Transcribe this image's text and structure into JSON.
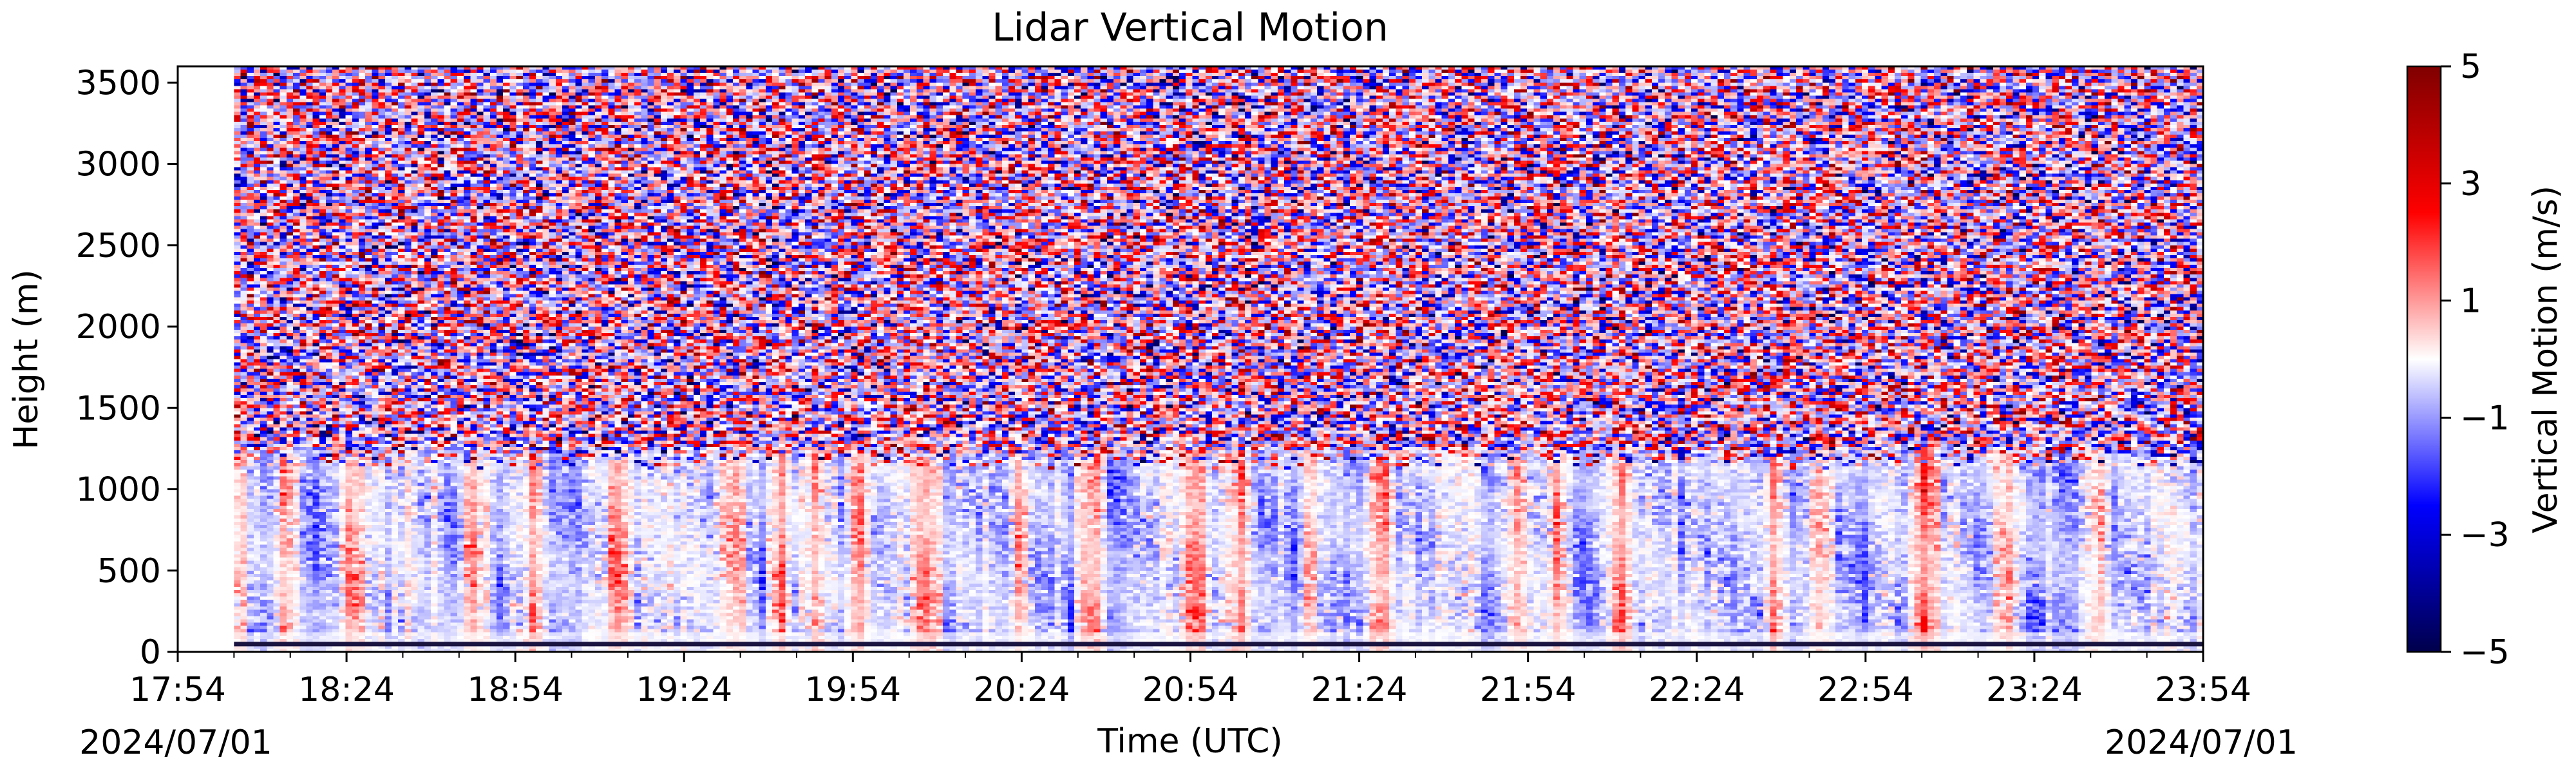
{
  "chart_data": {
    "type": "heatmap",
    "title": "Lidar Vertical Motion",
    "xlabel": "Time (UTC)",
    "ylabel": "Height (m)",
    "x_ticks": [
      "17:54",
      "18:24",
      "18:54",
      "19:24",
      "19:54",
      "20:24",
      "20:54",
      "21:24",
      "21:54",
      "22:24",
      "22:54",
      "23:24",
      "23:54"
    ],
    "x_date_left": "2024/07/01",
    "x_date_right": "2024/07/01",
    "xlim": [
      "2024-07-01 17:54",
      "2024-07-01 23:54"
    ],
    "data_start": "2024-07-01 18:04",
    "y_ticks": [
      0,
      500,
      1000,
      1500,
      2000,
      2500,
      3000,
      3500
    ],
    "ylim": [
      0,
      3600
    ],
    "colorbar": {
      "label": "Vertical Motion (m/s)",
      "ticks": [
        5,
        3,
        1,
        -1,
        -3,
        -5
      ],
      "tick_labels": [
        "5",
        "3",
        "1",
        "−1",
        "−3",
        "−5"
      ],
      "range": [
        -5,
        5
      ],
      "colormap": "seismic"
    },
    "boundary_layer_top_m": 1200,
    "noise_above_m": 1200,
    "updraft_columns": [
      "18:05",
      "18:13",
      "18:25",
      "18:47",
      "18:57",
      "19:12",
      "19:33",
      "19:41",
      "19:47",
      "19:55",
      "20:07",
      "20:24",
      "20:36",
      "20:55",
      "21:03",
      "21:15",
      "21:28",
      "21:52",
      "21:59",
      "22:10",
      "22:38",
      "22:46",
      "23:05",
      "23:19",
      "23:35"
    ],
    "bottom_band": "dark blue-black line near 50 m",
    "colors": {
      "positive": "#8b0000",
      "zero": "#ffffff",
      "negative": "#00004c"
    }
  }
}
